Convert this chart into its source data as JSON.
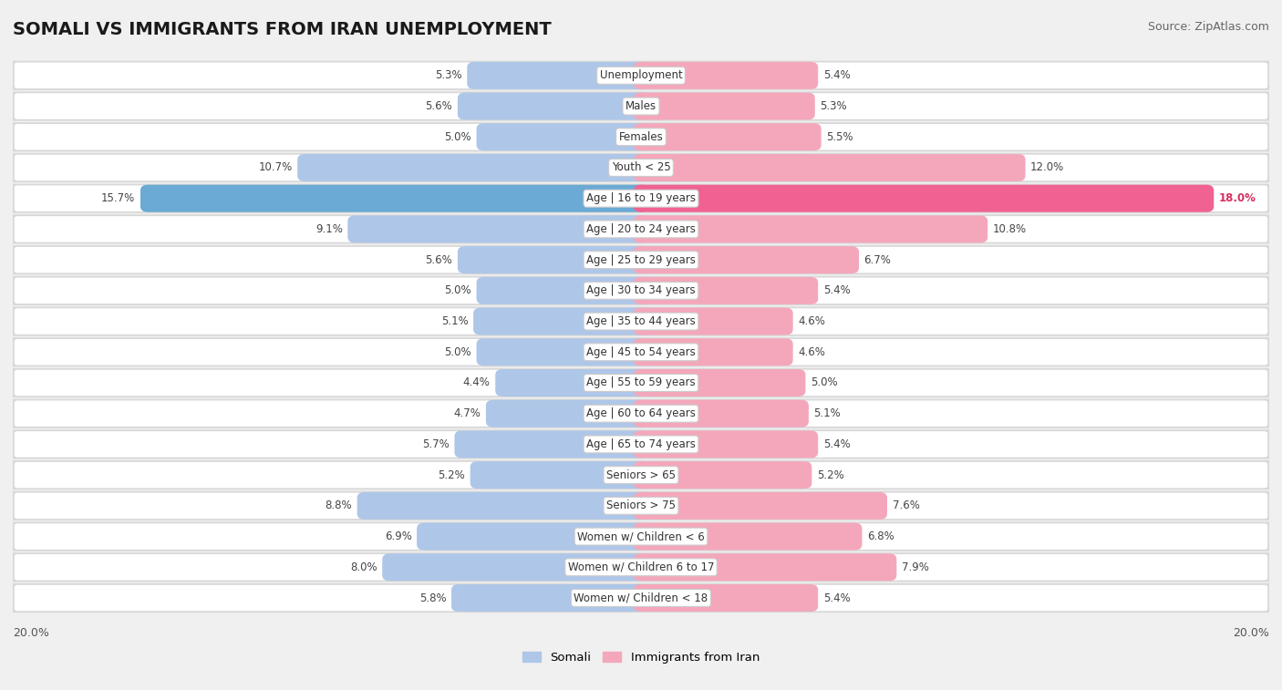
{
  "title": "SOMALI VS IMMIGRANTS FROM IRAN UNEMPLOYMENT",
  "source": "Source: ZipAtlas.com",
  "categories": [
    "Unemployment",
    "Males",
    "Females",
    "Youth < 25",
    "Age | 16 to 19 years",
    "Age | 20 to 24 years",
    "Age | 25 to 29 years",
    "Age | 30 to 34 years",
    "Age | 35 to 44 years",
    "Age | 45 to 54 years",
    "Age | 55 to 59 years",
    "Age | 60 to 64 years",
    "Age | 65 to 74 years",
    "Seniors > 65",
    "Seniors > 75",
    "Women w/ Children < 6",
    "Women w/ Children 6 to 17",
    "Women w/ Children < 18"
  ],
  "somali": [
    5.3,
    5.6,
    5.0,
    10.7,
    15.7,
    9.1,
    5.6,
    5.0,
    5.1,
    5.0,
    4.4,
    4.7,
    5.7,
    5.2,
    8.8,
    6.9,
    8.0,
    5.8
  ],
  "iran": [
    5.4,
    5.3,
    5.5,
    12.0,
    18.0,
    10.8,
    6.7,
    5.4,
    4.6,
    4.6,
    5.0,
    5.1,
    5.4,
    5.2,
    7.6,
    6.8,
    7.9,
    5.4
  ],
  "somali_color": "#aec6e8",
  "iran_color": "#f4a7bb",
  "somali_highlight_color": "#6aaad4",
  "iran_highlight_color": "#f06292",
  "highlight_indices": [
    4
  ],
  "axis_max": 20.0,
  "legend_label_somali": "Somali",
  "legend_label_iran": "Immigrants from Iran",
  "bg_color": "#f0f0f0",
  "row_outer_color": "#d8d8d8",
  "row_inner_color": "#ffffff",
  "title_fontsize": 14,
  "source_fontsize": 9,
  "label_fontsize": 8.5,
  "value_fontsize": 8.5
}
